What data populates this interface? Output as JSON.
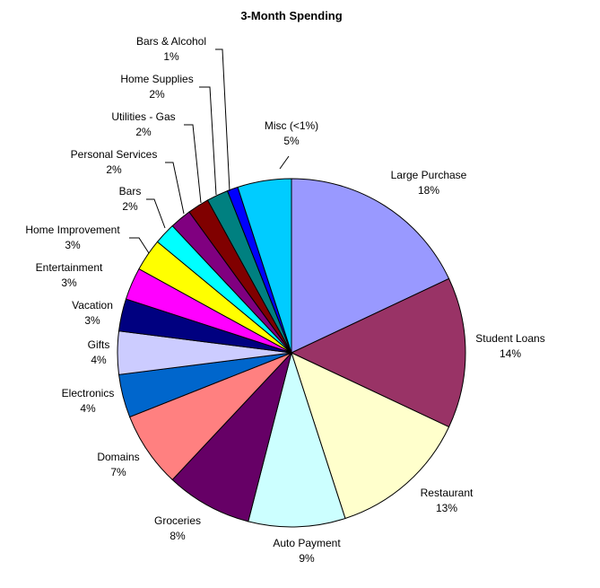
{
  "chart_data": {
    "type": "pie",
    "title": "3-Month Spending",
    "start": "top",
    "direction": "clockwise",
    "slices": [
      {
        "name": "Large Purchase",
        "pct_label": "18%",
        "value": 18,
        "color": "#9999FF"
      },
      {
        "name": "Student Loans",
        "pct_label": "14%",
        "value": 14,
        "color": "#993366"
      },
      {
        "name": "Restaurant",
        "pct_label": "13%",
        "value": 13,
        "color": "#FFFFCC"
      },
      {
        "name": "Auto Payment",
        "pct_label": "9%",
        "value": 9,
        "color": "#CCFFFF"
      },
      {
        "name": "Groceries",
        "pct_label": "8%",
        "value": 8,
        "color": "#660066"
      },
      {
        "name": "Domains",
        "pct_label": "7%",
        "value": 7,
        "color": "#FF8080"
      },
      {
        "name": "Electronics",
        "pct_label": "4%",
        "value": 4,
        "color": "#0066CC"
      },
      {
        "name": "Gifts",
        "pct_label": "4%",
        "value": 4,
        "color": "#CCCCFF"
      },
      {
        "name": "Vacation",
        "pct_label": "3%",
        "value": 3,
        "color": "#000080"
      },
      {
        "name": "Entertainment",
        "pct_label": "3%",
        "value": 3,
        "color": "#FF00FF"
      },
      {
        "name": "Home Improvement",
        "pct_label": "3%",
        "value": 3,
        "color": "#FFFF00"
      },
      {
        "name": "Bars",
        "pct_label": "2%",
        "value": 2,
        "color": "#00FFFF"
      },
      {
        "name": "Personal Services",
        "pct_label": "2%",
        "value": 2,
        "color": "#800080"
      },
      {
        "name": "Utilities - Gas",
        "pct_label": "2%",
        "value": 2,
        "color": "#800000"
      },
      {
        "name": "Home Supplies",
        "pct_label": "2%",
        "value": 2,
        "color": "#008080"
      },
      {
        "name": "Bars & Alcohol",
        "pct_label": "1%",
        "value": 1,
        "color": "#0000FF"
      },
      {
        "name": "Misc (<1%)",
        "pct_label": "5%",
        "value": 5,
        "color": "#00CCFF"
      }
    ]
  }
}
